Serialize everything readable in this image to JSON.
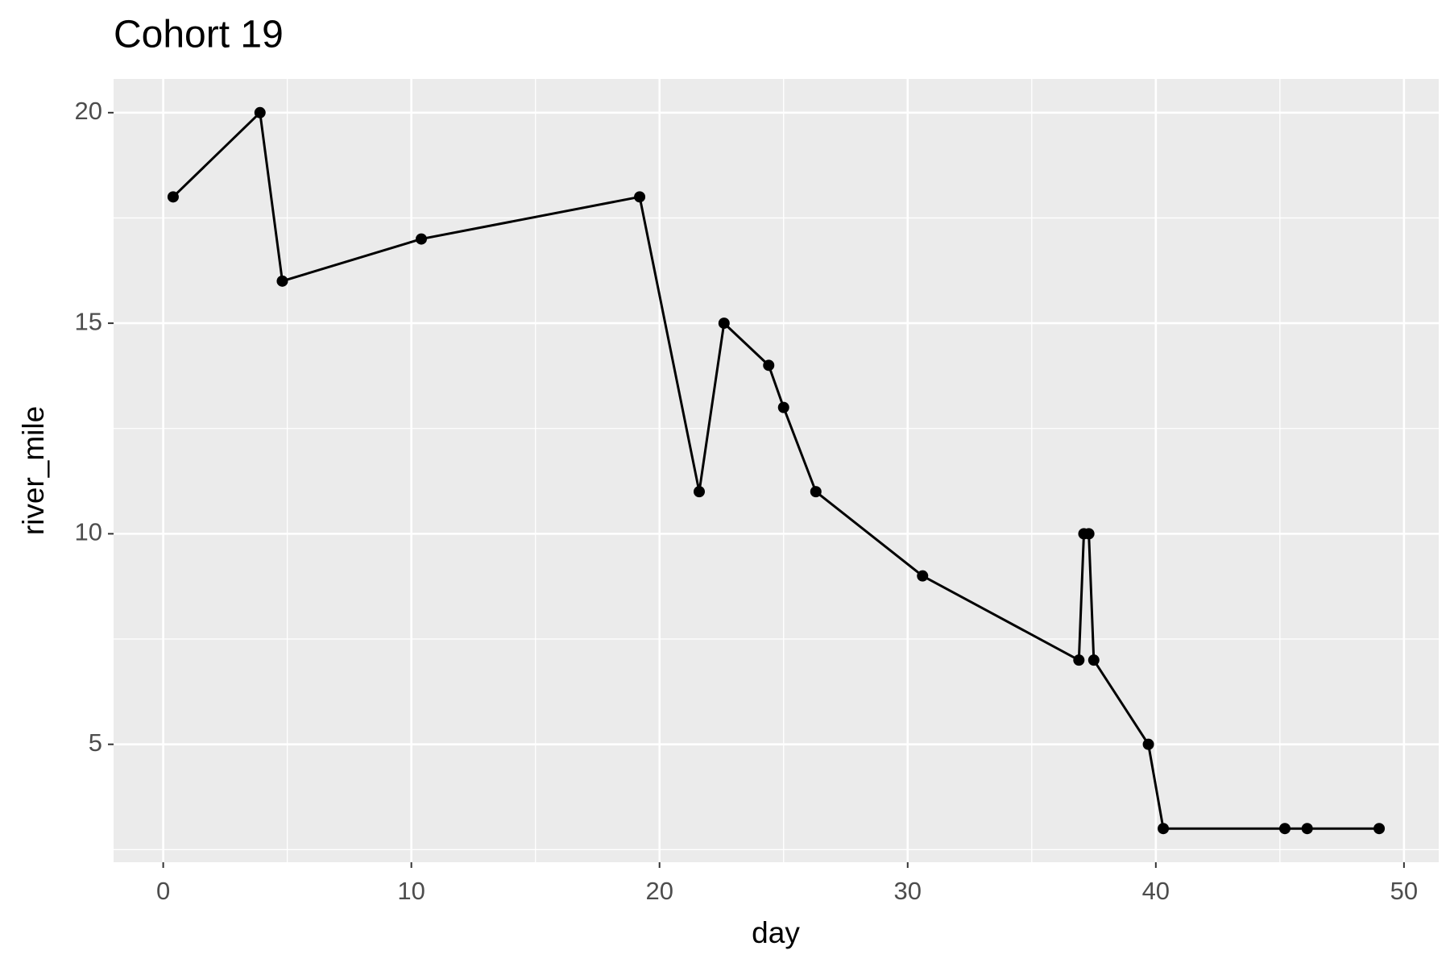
{
  "chart_data": {
    "type": "line",
    "title": "Cohort 19",
    "x_label": "day",
    "y_label": "river_mile",
    "x": [
      0.4,
      3.9,
      4.8,
      10.4,
      19.2,
      21.6,
      22.6,
      24.4,
      25.0,
      26.3,
      30.6,
      36.9,
      37.1,
      37.3,
      37.5,
      39.7,
      40.3,
      45.2,
      46.1,
      49.0
    ],
    "series": [
      {
        "name": "river_mile",
        "color": "#000000",
        "values": [
          18,
          20,
          16,
          17,
          18,
          11,
          15,
          14,
          13,
          11,
          9,
          7,
          10,
          10,
          7,
          5,
          3,
          3,
          3,
          3
        ]
      }
    ],
    "xlim": [
      -2.0,
      51.4
    ],
    "ylim": [
      2.2,
      20.8
    ],
    "xticks": [
      0,
      10,
      20,
      30,
      40,
      50
    ],
    "yticks": [
      5,
      10,
      15,
      20
    ],
    "grid": true
  }
}
